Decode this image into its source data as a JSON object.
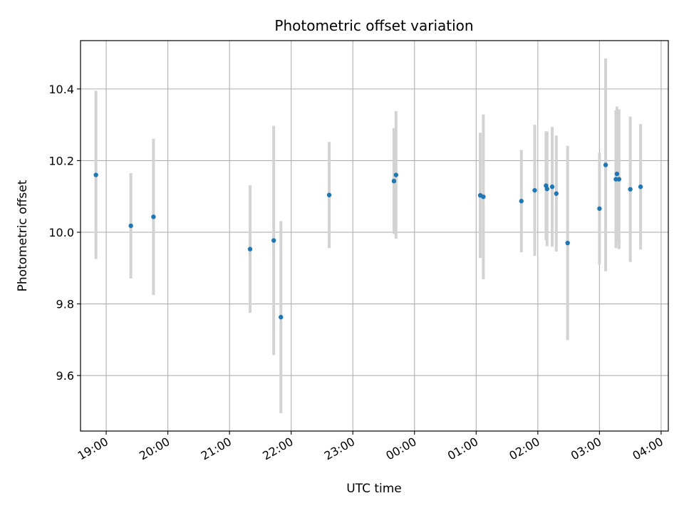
{
  "chart_data": {
    "type": "scatter",
    "title": "Photometric offset variation",
    "xlabel": "UTC time",
    "ylabel": "Photometric offset",
    "x_ticks": [
      "19:00",
      "20:00",
      "21:00",
      "22:00",
      "23:00",
      "00:00",
      "01:00",
      "02:00",
      "03:00",
      "04:00"
    ],
    "xlim": [
      "18:35",
      "04:07"
    ],
    "y_ticks": [
      "9.6",
      "9.8",
      "10.0",
      "10.2",
      "10.4"
    ],
    "ylim": [
      9.445,
      10.535
    ],
    "grid": true,
    "error_bar_color": "#d3d3d3",
    "marker_color": "#1f77b4",
    "series": [
      {
        "points": [
          {
            "t": "18:50",
            "y": 10.16,
            "err": 0.235
          },
          {
            "t": "19:24",
            "y": 10.018,
            "err": 0.147
          },
          {
            "t": "19:46",
            "y": 10.043,
            "err": 0.218
          },
          {
            "t": "21:20",
            "y": 9.953,
            "err": 0.178
          },
          {
            "t": "21:43",
            "y": 9.977,
            "err": 0.32
          },
          {
            "t": "21:50",
            "y": 9.763,
            "err": 0.268
          },
          {
            "t": "22:37",
            "y": 10.104,
            "err": 0.148
          },
          {
            "t": "23:40",
            "y": 10.143,
            "err": 0.148
          },
          {
            "t": "23:42",
            "y": 10.16,
            "err": 0.178
          },
          {
            "t": "01:04",
            "y": 10.103,
            "err": 0.175
          },
          {
            "t": "01:07",
            "y": 10.099,
            "err": 0.23
          },
          {
            "t": "01:44",
            "y": 10.087,
            "err": 0.143
          },
          {
            "t": "01:57",
            "y": 10.117,
            "err": 0.183
          },
          {
            "t": "02:08",
            "y": 10.13,
            "err": 0.152
          },
          {
            "t": "02:09",
            "y": 10.121,
            "err": 0.16
          },
          {
            "t": "02:14",
            "y": 10.127,
            "err": 0.167
          },
          {
            "t": "02:18",
            "y": 10.108,
            "err": 0.162
          },
          {
            "t": "02:29",
            "y": 9.97,
            "err": 0.271
          },
          {
            "t": "03:00",
            "y": 10.066,
            "err": 0.156
          },
          {
            "t": "03:06",
            "y": 10.188,
            "err": 0.297
          },
          {
            "t": "03:16",
            "y": 10.148,
            "err": 0.192
          },
          {
            "t": "03:17",
            "y": 10.163,
            "err": 0.188
          },
          {
            "t": "03:19",
            "y": 10.148,
            "err": 0.195
          },
          {
            "t": "03:30",
            "y": 10.12,
            "err": 0.203
          },
          {
            "t": "03:40",
            "y": 10.127,
            "err": 0.175
          }
        ]
      }
    ]
  }
}
